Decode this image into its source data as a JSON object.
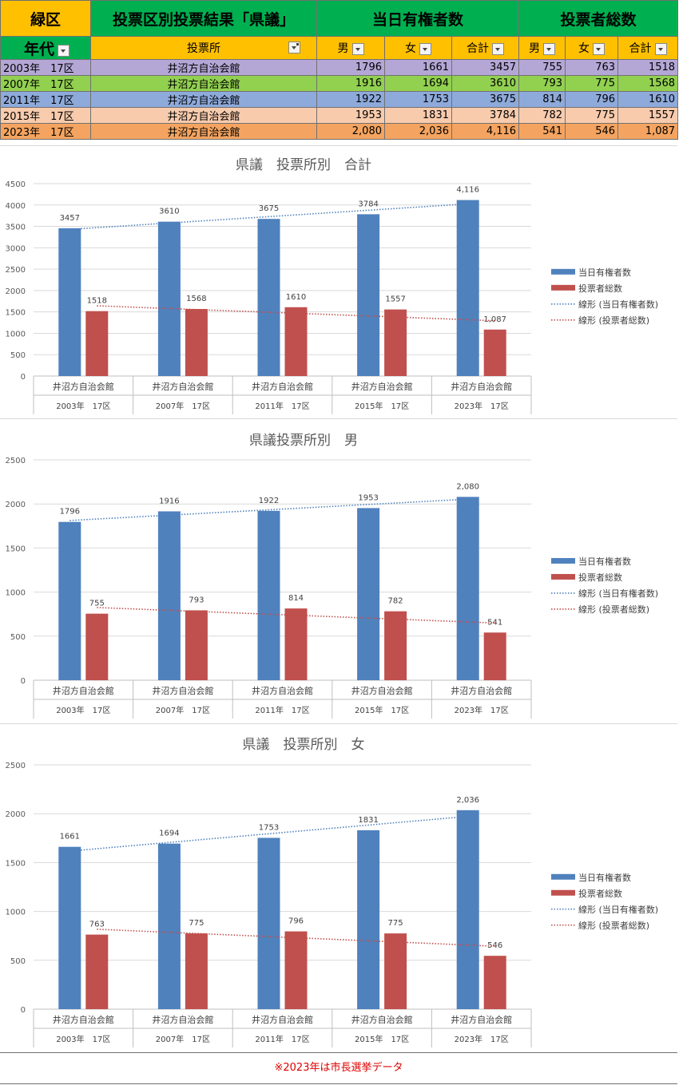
{
  "table": {
    "ward": "緑区",
    "title": "投票区別投票結果「県議」",
    "electorate_header": "当日有権者数",
    "voters_header": "投票者総数",
    "col_era": "年代",
    "col_place": "投票所",
    "col_m": "男",
    "col_f": "女",
    "col_t": "合計",
    "rows": [
      {
        "era": "2003年　17区",
        "place": "井沼方自治会館",
        "em": "1796",
        "ef": "1661",
        "et": "3457",
        "vm": "755",
        "vf": "763",
        "vt": "1518",
        "color": "#b4a7d6"
      },
      {
        "era": "2007年　17区",
        "place": "井沼方自治会館",
        "em": "1916",
        "ef": "1694",
        "et": "3610",
        "vm": "793",
        "vf": "775",
        "vt": "1568",
        "color": "#92d050"
      },
      {
        "era": "2011年　17区",
        "place": "井沼方自治会館",
        "em": "1922",
        "ef": "1753",
        "et": "3675",
        "vm": "814",
        "vf": "796",
        "vt": "1610",
        "color": "#8eaadb"
      },
      {
        "era": "2015年　17区",
        "place": "井沼方自治会館",
        "em": "1953",
        "ef": "1831",
        "et": "3784",
        "vm": "782",
        "vf": "775",
        "vt": "1557",
        "color": "#f8cbad"
      },
      {
        "era": "2023年　17区",
        "place": "井沼方自治会館",
        "em": "2,080",
        "ef": "2,036",
        "et": "4,116",
        "vm": "541",
        "vf": "546",
        "vt": "1,087",
        "color": "#f4a460"
      }
    ]
  },
  "chart_data": [
    {
      "type": "bar",
      "title": "県議　投票所別　合計",
      "categories": [
        "井沼方自治会館",
        "井沼方自治会館",
        "井沼方自治会館",
        "井沼方自治会館",
        "井沼方自治会館"
      ],
      "subcategories": [
        "2003年　17区",
        "2007年　17区",
        "2011年　17区",
        "2015年　17区",
        "2023年　17区"
      ],
      "series": [
        {
          "name": "当日有権者数",
          "values": [
            3457,
            3610,
            3675,
            3784,
            4116
          ],
          "labels": [
            "3457",
            "3610",
            "3675",
            "3784",
            "4,116"
          ],
          "color": "#4f81bd"
        },
        {
          "name": "投票者総数",
          "values": [
            1518,
            1568,
            1610,
            1557,
            1087
          ],
          "labels": [
            "1518",
            "1568",
            "1610",
            "1557",
            "1,087"
          ],
          "color": "#c0504d"
        }
      ],
      "trendlines": [
        {
          "name": "線形 (当日有権者数)",
          "color": "#4f81bd"
        },
        {
          "name": "線形 (投票者総数)",
          "color": "#c0504d"
        }
      ],
      "ylim": [
        0,
        4500
      ],
      "ytick_step": 500,
      "grid": true,
      "legend": "right"
    },
    {
      "type": "bar",
      "title": "県議投票所別　男",
      "categories": [
        "井沼方自治会館",
        "井沼方自治会館",
        "井沼方自治会館",
        "井沼方自治会館",
        "井沼方自治会館"
      ],
      "subcategories": [
        "2003年　17区",
        "2007年　17区",
        "2011年　17区",
        "2015年　17区",
        "2023年　17区"
      ],
      "series": [
        {
          "name": "当日有権者数",
          "values": [
            1796,
            1916,
            1922,
            1953,
            2080
          ],
          "labels": [
            "1796",
            "1916",
            "1922",
            "1953",
            "2,080"
          ],
          "color": "#4f81bd"
        },
        {
          "name": "投票者総数",
          "values": [
            755,
            793,
            814,
            782,
            541
          ],
          "labels": [
            "755",
            "793",
            "814",
            "782",
            "541"
          ],
          "color": "#c0504d"
        }
      ],
      "trendlines": [
        {
          "name": "線形 (当日有権者数)",
          "color": "#4f81bd"
        },
        {
          "name": "線形 (投票者総数)",
          "color": "#c0504d"
        }
      ],
      "ylim": [
        0,
        2500
      ],
      "ytick_step": 500,
      "grid": true,
      "legend": "right"
    },
    {
      "type": "bar",
      "title": "県議　投票所別　女",
      "categories": [
        "井沼方自治会館",
        "井沼方自治会館",
        "井沼方自治会館",
        "井沼方自治会館",
        "井沼方自治会館"
      ],
      "subcategories": [
        "2003年　17区",
        "2007年　17区",
        "2011年　17区",
        "2015年　17区",
        "2023年　17区"
      ],
      "series": [
        {
          "name": "当日有権者数",
          "values": [
            1661,
            1694,
            1753,
            1831,
            2036
          ],
          "labels": [
            "1661",
            "1694",
            "1753",
            "1831",
            "2,036"
          ],
          "color": "#4f81bd"
        },
        {
          "name": "投票者総数",
          "values": [
            763,
            775,
            796,
            775,
            546
          ],
          "labels": [
            "763",
            "775",
            "796",
            "775",
            "546"
          ],
          "color": "#c0504d"
        }
      ],
      "trendlines": [
        {
          "name": "線形 (当日有権者数)",
          "color": "#4f81bd"
        },
        {
          "name": "線形 (投票者総数)",
          "color": "#c0504d"
        }
      ],
      "ylim": [
        0,
        2500
      ],
      "ytick_step": 500,
      "grid": true,
      "legend": "right"
    }
  ],
  "note": "※2023年は市長選挙データ"
}
